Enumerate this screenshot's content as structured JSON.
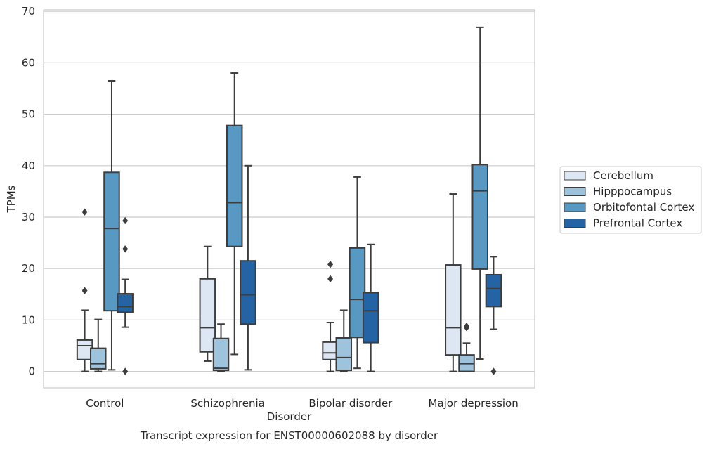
{
  "chart_data": {
    "type": "boxplot",
    "title": "",
    "caption": "Transcript expression for ENST00000602088 by disorder",
    "xlabel": "Disorder",
    "ylabel": "TPMs",
    "ylim": [
      -3.2,
      70.3
    ],
    "yticks": [
      0,
      10,
      20,
      30,
      40,
      50,
      60,
      70
    ],
    "grid": "horizontal",
    "legend_position": "right",
    "categories": [
      "Control",
      "Schizophrenia",
      "Bipolar disorder",
      "Major depression"
    ],
    "series": [
      {
        "name": "Cerebellum",
        "color": "#dce7f3",
        "boxes": [
          {
            "whislo": 0.0,
            "q1": 2.3,
            "med": 5.0,
            "q3": 6.1,
            "whishi": 11.9,
            "fliers": [
              15.7,
              31.0
            ]
          },
          {
            "whislo": 2.0,
            "q1": 3.8,
            "med": 8.5,
            "q3": 18.0,
            "whishi": 24.3,
            "fliers": []
          },
          {
            "whislo": 0.0,
            "q1": 2.3,
            "med": 3.6,
            "q3": 5.7,
            "whishi": 9.5,
            "fliers": [
              18.0,
              20.8
            ]
          },
          {
            "whislo": 0.0,
            "q1": 3.2,
            "med": 8.5,
            "q3": 20.7,
            "whishi": 34.5,
            "fliers": []
          }
        ]
      },
      {
        "name": "Hipppocampus",
        "color": "#9ec4dd",
        "boxes": [
          {
            "whislo": 0.0,
            "q1": 0.5,
            "med": 1.5,
            "q3": 4.5,
            "whishi": 10.1,
            "fliers": []
          },
          {
            "whislo": 0.0,
            "q1": 0.2,
            "med": 0.6,
            "q3": 6.4,
            "whishi": 9.2,
            "fliers": []
          },
          {
            "whislo": 0.0,
            "q1": 0.2,
            "med": 2.7,
            "q3": 6.5,
            "whishi": 11.9,
            "fliers": []
          },
          {
            "whislo": 0.0,
            "q1": 0.0,
            "med": 1.5,
            "q3": 3.2,
            "whishi": 5.5,
            "fliers": [
              8.5,
              8.8
            ]
          }
        ]
      },
      {
        "name": "Orbitofontal Cortex",
        "color": "#5899c4",
        "boxes": [
          {
            "whislo": 0.3,
            "q1": 11.8,
            "med": 27.8,
            "q3": 38.7,
            "whishi": 56.5,
            "fliers": []
          },
          {
            "whislo": 3.3,
            "q1": 24.3,
            "med": 32.8,
            "q3": 47.8,
            "whishi": 58.0,
            "fliers": []
          },
          {
            "whislo": 0.6,
            "q1": 6.6,
            "med": 14.0,
            "q3": 24.0,
            "whishi": 37.8,
            "fliers": []
          },
          {
            "whislo": 2.4,
            "q1": 19.9,
            "med": 35.1,
            "q3": 40.2,
            "whishi": 66.9,
            "fliers": []
          }
        ]
      },
      {
        "name": "Prefrontal Cortex",
        "color": "#2464a5",
        "boxes": [
          {
            "whislo": 8.6,
            "q1": 11.5,
            "med": 12.6,
            "q3": 15.1,
            "whishi": 17.9,
            "fliers": [
              0.0,
              23.8,
              29.3
            ]
          },
          {
            "whislo": 0.3,
            "q1": 9.2,
            "med": 14.9,
            "q3": 21.5,
            "whishi": 40.0,
            "fliers": []
          },
          {
            "whislo": 0.0,
            "q1": 5.6,
            "med": 11.8,
            "q3": 15.3,
            "whishi": 24.7,
            "fliers": []
          },
          {
            "whislo": 8.2,
            "q1": 12.6,
            "med": 16.1,
            "q3": 18.8,
            "whishi": 22.3,
            "fliers": [
              0.0
            ]
          }
        ]
      }
    ]
  }
}
